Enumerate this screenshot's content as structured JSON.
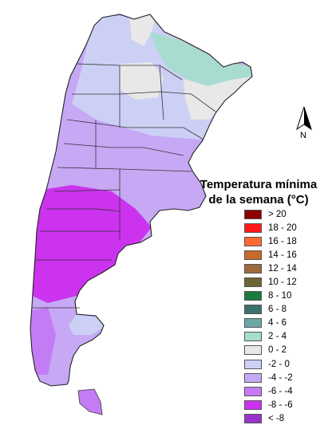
{
  "legend": {
    "title_line1": "Temperatura mínima",
    "title_line2": "de la semana (°C)",
    "items": [
      {
        "label": "> 20",
        "color": "#8b0000"
      },
      {
        "label": "18 - 20",
        "color": "#ff1a1a"
      },
      {
        "label": "16 - 18",
        "color": "#ff6a33"
      },
      {
        "label": "14 - 16",
        "color": "#c7692c"
      },
      {
        "label": "12 - 14",
        "color": "#9c6a3c"
      },
      {
        "label": "10 - 12",
        "color": "#6f6434"
      },
      {
        "label": "8 - 10",
        "color": "#1c7a3c"
      },
      {
        "label": "6 - 8",
        "color": "#3c7070"
      },
      {
        "label": "4 - 6",
        "color": "#6ea6a6"
      },
      {
        "label": "2 - 4",
        "color": "#a8dcd0"
      },
      {
        "label": "0 - 2",
        "color": "#e8e8e8"
      },
      {
        "label": "-2 - 0",
        "color": "#cdd0f5"
      },
      {
        "label": "-4 - -2",
        "color": "#c6a8f5"
      },
      {
        "label": "-6 - -4",
        "color": "#c47cf5"
      },
      {
        "label": "-8 - -6",
        "color": "#cc33ee"
      },
      {
        "label": "< -8",
        "color": "#9a33cc"
      }
    ]
  },
  "compass": {
    "label": "N"
  }
}
